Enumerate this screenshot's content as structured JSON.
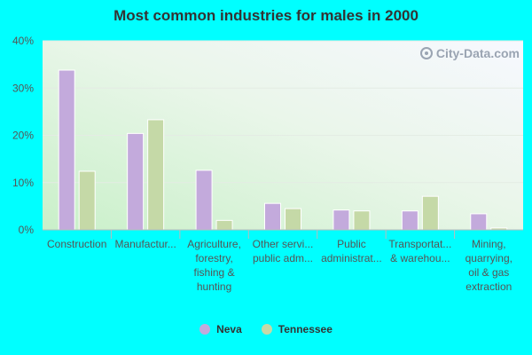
{
  "chart_data": {
    "type": "bar",
    "title": "Most common industries for males in 2000",
    "categories": [
      [
        "Construction"
      ],
      [
        "Manufactur..."
      ],
      [
        "Agriculture,",
        "forestry,",
        "fishing &",
        "hunting"
      ],
      [
        "Other servi...",
        "public adm..."
      ],
      [
        "Public",
        "administrat..."
      ],
      [
        "Transportat...",
        "& warehou..."
      ],
      [
        "Mining,",
        "quarrying,",
        "oil & gas",
        "extraction"
      ]
    ],
    "series": [
      {
        "name": "Neva",
        "color": "#c3aadc",
        "values": [
          33.8,
          20.4,
          12.6,
          5.6,
          4.2,
          4.0,
          3.4
        ]
      },
      {
        "name": "Tennessee",
        "color": "#c5d9a7",
        "values": [
          12.4,
          23.3,
          2.0,
          4.5,
          4.0,
          7.1,
          0.4
        ]
      }
    ],
    "yticks": [
      "0%",
      "10%",
      "20%",
      "30%",
      "40%"
    ],
    "ytick_values": [
      0,
      10,
      20,
      30,
      40
    ],
    "ylim": [
      0,
      40
    ],
    "grid": true,
    "legend_position": "bottom"
  },
  "watermark": {
    "text": "City-Data.com",
    "icon": "city-data-logo-icon"
  }
}
